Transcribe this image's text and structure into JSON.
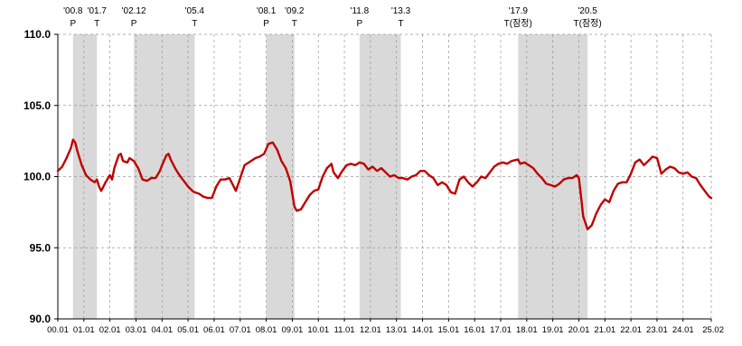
{
  "chart_data": {
    "type": "line",
    "title": "",
    "xlabel": "",
    "ylabel": "",
    "x_start": "2000-01",
    "x_end": "2025-02",
    "ylim": [
      90.0,
      110.0
    ],
    "y_ticks": [
      "110.0",
      "105.0",
      "100.0",
      "95.0",
      "90.0"
    ],
    "y_tick_values": [
      110,
      105,
      100,
      95,
      90
    ],
    "grid": "dashed vertical and horizontal",
    "line_color": "#c00000",
    "shade_color": "#d9d9d9",
    "x_ticks": [
      "00.01",
      "01.01",
      "02.01",
      "03.01",
      "04.01",
      "05.01",
      "06.01",
      "07.01",
      "08.01",
      "09.01",
      "10.01",
      "11.01",
      "12.01",
      "13.01",
      "14.01",
      "15.01",
      "16.01",
      "17.01",
      "18.01",
      "19.01",
      "20.01",
      "21.01",
      "22.01",
      "23.01",
      "24.01",
      "25.02"
    ],
    "x_tick_dates": [
      "2000-01",
      "2001-01",
      "2002-01",
      "2003-01",
      "2004-01",
      "2005-01",
      "2006-01",
      "2007-01",
      "2008-01",
      "2009-01",
      "2010-01",
      "2011-01",
      "2012-01",
      "2013-01",
      "2014-01",
      "2015-01",
      "2016-01",
      "2017-01",
      "2018-01",
      "2019-01",
      "2020-01",
      "2021-01",
      "2022-01",
      "2023-01",
      "2024-01",
      "2025-02"
    ],
    "shaded_periods": [
      {
        "start": "2000-08",
        "end": "2001-07"
      },
      {
        "start": "2002-12",
        "end": "2005-04"
      },
      {
        "start": "2008-01",
        "end": "2009-02"
      },
      {
        "start": "2011-08",
        "end": "2013-03"
      },
      {
        "start": "2017-09",
        "end": "2020-05"
      }
    ],
    "annotations": [
      {
        "date": "2000-08",
        "label": "'00.8",
        "type": "P"
      },
      {
        "date": "2001-07",
        "label": "'01.7",
        "type": "T"
      },
      {
        "date": "2002-12",
        "label": "'02.12",
        "type": "P"
      },
      {
        "date": "2005-04",
        "label": "'05.4",
        "type": "T"
      },
      {
        "date": "2008-01",
        "label": "'08.1",
        "type": "P"
      },
      {
        "date": "2009-02",
        "label": "'09.2",
        "type": "T"
      },
      {
        "date": "2011-08",
        "label": "'11.8",
        "type": "P"
      },
      {
        "date": "2013-03",
        "label": "'13.3",
        "type": "T"
      },
      {
        "date": "2017-09",
        "label": "'17.9",
        "type": "T(잠정)"
      },
      {
        "date": "2020-05",
        "label": "'20.5",
        "type": "T(잠정)"
      }
    ],
    "series": [
      {
        "points": [
          [
            "2000-01",
            100.4
          ],
          [
            "2000-03",
            100.7
          ],
          [
            "2000-05",
            101.3
          ],
          [
            "2000-07",
            102.0
          ],
          [
            "2000-08",
            102.6
          ],
          [
            "2000-09",
            102.4
          ],
          [
            "2000-10",
            101.8
          ],
          [
            "2000-12",
            100.8
          ],
          [
            "2001-02",
            100.1
          ],
          [
            "2001-04",
            99.8
          ],
          [
            "2001-06",
            99.6
          ],
          [
            "2001-07",
            99.8
          ],
          [
            "2001-08",
            99.3
          ],
          [
            "2001-09",
            99.0
          ],
          [
            "2001-11",
            99.6
          ],
          [
            "2002-01",
            100.1
          ],
          [
            "2002-02",
            99.8
          ],
          [
            "2002-03",
            100.6
          ],
          [
            "2002-05",
            101.5
          ],
          [
            "2002-06",
            101.6
          ],
          [
            "2002-07",
            101.1
          ],
          [
            "2002-09",
            101.0
          ],
          [
            "2002-10",
            101.3
          ],
          [
            "2002-12",
            101.1
          ],
          [
            "2003-02",
            100.6
          ],
          [
            "2003-04",
            99.8
          ],
          [
            "2003-06",
            99.7
          ],
          [
            "2003-08",
            99.9
          ],
          [
            "2003-10",
            99.9
          ],
          [
            "2003-12",
            100.4
          ],
          [
            "2004-01",
            100.8
          ],
          [
            "2004-03",
            101.5
          ],
          [
            "2004-04",
            101.6
          ],
          [
            "2004-05",
            101.2
          ],
          [
            "2004-07",
            100.6
          ],
          [
            "2004-09",
            100.1
          ],
          [
            "2004-11",
            99.7
          ],
          [
            "2005-01",
            99.3
          ],
          [
            "2005-03",
            99.0
          ],
          [
            "2005-04",
            98.9
          ],
          [
            "2005-06",
            98.8
          ],
          [
            "2005-08",
            98.6
          ],
          [
            "2005-10",
            98.5
          ],
          [
            "2005-12",
            98.5
          ],
          [
            "2006-02",
            99.3
          ],
          [
            "2006-04",
            99.8
          ],
          [
            "2006-06",
            99.8
          ],
          [
            "2006-08",
            99.9
          ],
          [
            "2006-10",
            99.3
          ],
          [
            "2006-11",
            99.0
          ],
          [
            "2007-01",
            99.9
          ],
          [
            "2007-03",
            100.8
          ],
          [
            "2007-05",
            101.0
          ],
          [
            "2007-08",
            101.3
          ],
          [
            "2007-10",
            101.4
          ],
          [
            "2007-12",
            101.6
          ],
          [
            "2008-02",
            102.3
          ],
          [
            "2008-04",
            102.4
          ],
          [
            "2008-06",
            101.9
          ],
          [
            "2008-08",
            101.1
          ],
          [
            "2008-10",
            100.6
          ],
          [
            "2008-12",
            99.7
          ],
          [
            "2009-02",
            97.9
          ],
          [
            "2009-03",
            97.6
          ],
          [
            "2009-05",
            97.7
          ],
          [
            "2009-07",
            98.2
          ],
          [
            "2009-09",
            98.7
          ],
          [
            "2009-11",
            99.0
          ],
          [
            "2010-01",
            99.1
          ],
          [
            "2010-03",
            100.0
          ],
          [
            "2010-05",
            100.6
          ],
          [
            "2010-07",
            100.9
          ],
          [
            "2010-08",
            100.3
          ],
          [
            "2010-10",
            99.9
          ],
          [
            "2010-12",
            100.4
          ],
          [
            "2011-02",
            100.8
          ],
          [
            "2011-04",
            100.9
          ],
          [
            "2011-06",
            100.8
          ],
          [
            "2011-08",
            101.0
          ],
          [
            "2011-10",
            100.9
          ],
          [
            "2011-12",
            100.5
          ],
          [
            "2012-02",
            100.7
          ],
          [
            "2012-04",
            100.4
          ],
          [
            "2012-06",
            100.6
          ],
          [
            "2012-08",
            100.3
          ],
          [
            "2012-10",
            100.0
          ],
          [
            "2012-12",
            100.1
          ],
          [
            "2013-02",
            99.9
          ],
          [
            "2013-04",
            99.9
          ],
          [
            "2013-06",
            99.8
          ],
          [
            "2013-08",
            100.0
          ],
          [
            "2013-10",
            100.1
          ],
          [
            "2013-12",
            100.4
          ],
          [
            "2014-02",
            100.4
          ],
          [
            "2014-04",
            100.1
          ],
          [
            "2014-06",
            99.9
          ],
          [
            "2014-08",
            99.4
          ],
          [
            "2014-10",
            99.6
          ],
          [
            "2014-12",
            99.4
          ],
          [
            "2015-02",
            98.9
          ],
          [
            "2015-04",
            98.8
          ],
          [
            "2015-06",
            99.8
          ],
          [
            "2015-08",
            100.0
          ],
          [
            "2015-10",
            99.6
          ],
          [
            "2015-12",
            99.3
          ],
          [
            "2016-02",
            99.6
          ],
          [
            "2016-04",
            100.0
          ],
          [
            "2016-06",
            99.9
          ],
          [
            "2016-08",
            100.3
          ],
          [
            "2016-10",
            100.7
          ],
          [
            "2016-12",
            100.9
          ],
          [
            "2017-02",
            101.0
          ],
          [
            "2017-04",
            100.9
          ],
          [
            "2017-06",
            101.1
          ],
          [
            "2017-09",
            101.2
          ],
          [
            "2017-10",
            100.9
          ],
          [
            "2017-12",
            101.0
          ],
          [
            "2018-02",
            100.8
          ],
          [
            "2018-04",
            100.6
          ],
          [
            "2018-06",
            100.2
          ],
          [
            "2018-08",
            99.9
          ],
          [
            "2018-10",
            99.5
          ],
          [
            "2018-12",
            99.4
          ],
          [
            "2019-02",
            99.3
          ],
          [
            "2019-04",
            99.5
          ],
          [
            "2019-06",
            99.8
          ],
          [
            "2019-08",
            99.9
          ],
          [
            "2019-10",
            99.9
          ],
          [
            "2019-12",
            100.1
          ],
          [
            "2020-01",
            99.9
          ],
          [
            "2020-02",
            98.6
          ],
          [
            "2020-03",
            97.2
          ],
          [
            "2020-05",
            96.3
          ],
          [
            "2020-07",
            96.6
          ],
          [
            "2020-09",
            97.4
          ],
          [
            "2020-11",
            98.0
          ],
          [
            "2021-01",
            98.4
          ],
          [
            "2021-03",
            98.2
          ],
          [
            "2021-05",
            99.0
          ],
          [
            "2021-07",
            99.5
          ],
          [
            "2021-09",
            99.6
          ],
          [
            "2021-11",
            99.6
          ],
          [
            "2022-01",
            100.2
          ],
          [
            "2022-03",
            101.0
          ],
          [
            "2022-05",
            101.2
          ],
          [
            "2022-07",
            100.8
          ],
          [
            "2022-09",
            101.1
          ],
          [
            "2022-11",
            101.4
          ],
          [
            "2023-01",
            101.3
          ],
          [
            "2023-03",
            100.2
          ],
          [
            "2023-05",
            100.5
          ],
          [
            "2023-07",
            100.7
          ],
          [
            "2023-09",
            100.6
          ],
          [
            "2023-11",
            100.3
          ],
          [
            "2024-01",
            100.2
          ],
          [
            "2024-03",
            100.3
          ],
          [
            "2024-05",
            100.0
          ],
          [
            "2024-07",
            99.9
          ],
          [
            "2024-09",
            99.4
          ],
          [
            "2024-11",
            99.0
          ],
          [
            "2025-01",
            98.6
          ],
          [
            "2025-02",
            98.5
          ]
        ]
      }
    ]
  }
}
